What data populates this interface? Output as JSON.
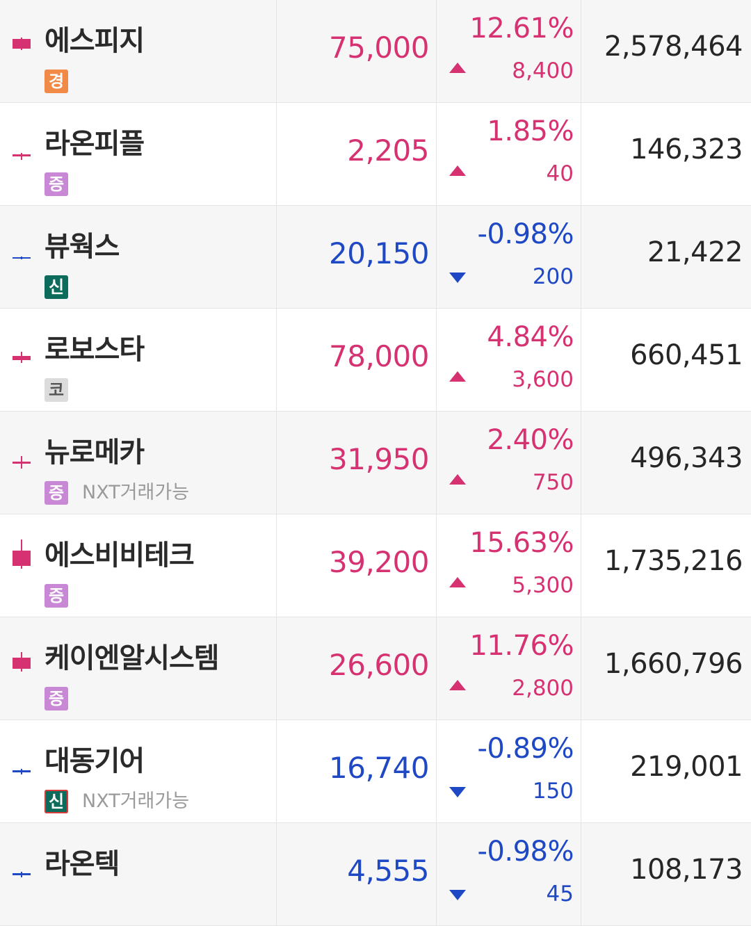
{
  "colors": {
    "up": "#d63272",
    "down": "#1f48c4",
    "neutral": "#262626"
  },
  "nxt_label": "NXT거래가능",
  "stocks": [
    {
      "name": "에스피지",
      "badge": "경",
      "badge_kind": "gyeong",
      "nxt": false,
      "price": "75,000",
      "change_pct": "12.61%",
      "change": "8,400",
      "direction": "up",
      "volume": "2,578,464",
      "candle_icon": "candlestick-icon"
    },
    {
      "name": "라온피플",
      "badge": "증",
      "badge_kind": "jeung",
      "nxt": false,
      "price": "2,205",
      "change_pct": "1.85%",
      "change": "40",
      "direction": "up",
      "volume": "146,323",
      "candle_icon": "candlestick-icon"
    },
    {
      "name": "뷰웍스",
      "badge": "신",
      "badge_kind": "sin",
      "nxt": false,
      "price": "20,150",
      "change_pct": "-0.98%",
      "change": "200",
      "direction": "down",
      "volume": "21,422",
      "candle_icon": "candlestick-icon"
    },
    {
      "name": "로보스타",
      "badge": "코",
      "badge_kind": "ko",
      "nxt": false,
      "price": "78,000",
      "change_pct": "4.84%",
      "change": "3,600",
      "direction": "up",
      "volume": "660,451",
      "candle_icon": "candlestick-icon"
    },
    {
      "name": "뉴로메카",
      "badge": "증",
      "badge_kind": "jeung",
      "nxt": true,
      "price": "31,950",
      "change_pct": "2.40%",
      "change": "750",
      "direction": "up",
      "volume": "496,343",
      "candle_icon": "candlestick-icon"
    },
    {
      "name": "에스비비테크",
      "badge": "증",
      "badge_kind": "jeung",
      "nxt": false,
      "price": "39,200",
      "change_pct": "15.63%",
      "change": "5,300",
      "direction": "up",
      "volume": "1,735,216",
      "candle_icon": "candlestick-icon"
    },
    {
      "name": "케이엔알시스템",
      "badge": "증",
      "badge_kind": "jeung",
      "nxt": false,
      "price": "26,600",
      "change_pct": "11.76%",
      "change": "2,800",
      "direction": "up",
      "volume": "1,660,796",
      "candle_icon": "candlestick-icon"
    },
    {
      "name": "대동기어",
      "badge": "신",
      "badge_kind": "sin",
      "nxt": true,
      "price": "16,740",
      "change_pct": "-0.89%",
      "change": "150",
      "direction": "down",
      "volume": "219,001",
      "candle_icon": "candlestick-icon"
    },
    {
      "name": "라온텍",
      "badge": "",
      "badge_kind": "",
      "nxt": false,
      "price": "4,555",
      "change_pct": "-0.98%",
      "change": "45",
      "direction": "down",
      "volume": "108,173",
      "candle_icon": "candlestick-icon"
    }
  ]
}
